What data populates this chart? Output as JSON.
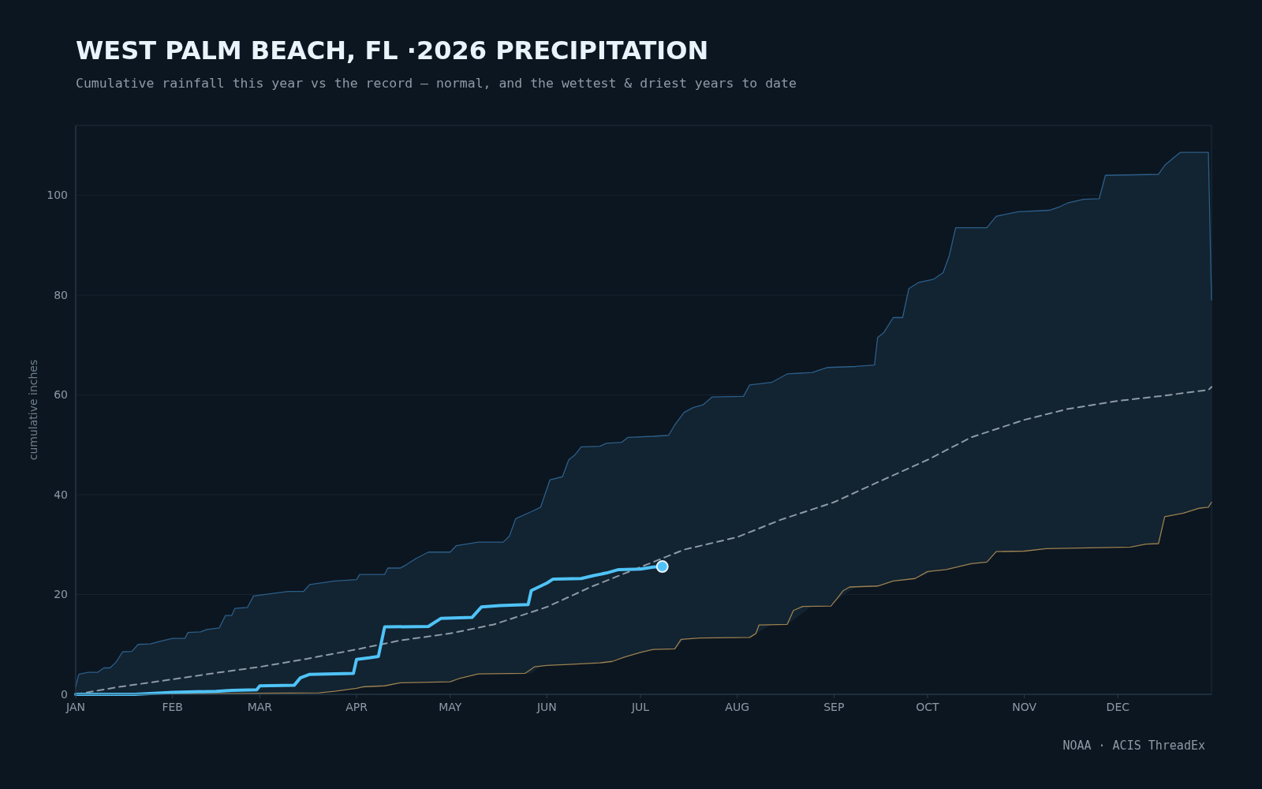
{
  "chart_data": {
    "type": "line",
    "title": "WEST PALM BEACH, FL ·2026 PRECIPITATION",
    "subtitle": "Cumulative rainfall this year vs the record — normal, and the wettest & driest years to date",
    "ylabel": "cumulative inches",
    "annotations": [
      "NOAA · ACIS ThreadEx"
    ],
    "xlim": [
      "--01-01",
      "--12-31"
    ],
    "xticks": [
      {
        "value": "--01-01",
        "label": "JAN"
      },
      {
        "value": "--02-01",
        "label": "FEB"
      },
      {
        "value": "--03-01",
        "label": "MAR"
      },
      {
        "value": "--04-01",
        "label": "APR"
      },
      {
        "value": "--05-01",
        "label": "MAY"
      },
      {
        "value": "--06-01",
        "label": "JUN"
      },
      {
        "value": "--07-01",
        "label": "JUL"
      },
      {
        "value": "--08-01",
        "label": "AUG"
      },
      {
        "value": "--09-01",
        "label": "SEP"
      },
      {
        "value": "--10-01",
        "label": "OCT"
      },
      {
        "value": "--11-01",
        "label": "NOV"
      },
      {
        "value": "--12-01",
        "label": "DEC"
      }
    ],
    "ylim": [
      0,
      114
    ],
    "yticks": [
      0,
      20,
      40,
      60,
      80,
      100
    ],
    "grid": "y",
    "series": [
      {
        "type": "line",
        "color": "#2c5f8a",
        "x": [
          "--01-01",
          "--01-02",
          "--01-05",
          "--01-08",
          "--01-10",
          "--01-12",
          "--01-14",
          "--01-16",
          "--01-19",
          "--01-21",
          "--01-25",
          "--01-28",
          "--02-01",
          "--02-05",
          "--02-06",
          "--02-10",
          "--02-12",
          "--02-16",
          "--02-18",
          "--02-20",
          "--02-21",
          "--02-25",
          "--02-27",
          "--03-10",
          "--03-15",
          "--03-17",
          "--03-25",
          "--04-01",
          "--04-02",
          "--04-10",
          "--04-11",
          "--04-15",
          "--04-17",
          "--04-20",
          "--04-24",
          "--05-01",
          "--05-03",
          "--05-10",
          "--05-18",
          "--05-20",
          "--05-22",
          "--05-27",
          "--05-30",
          "--06-02",
          "--06-06",
          "--06-08",
          "--06-10",
          "--06-12",
          "--06-18",
          "--06-20",
          "--06-25",
          "--06-27",
          "--07-05",
          "--07-10",
          "--07-12",
          "--07-15",
          "--07-18",
          "--07-21",
          "--07-24",
          "--08-03",
          "--08-05",
          "--08-12",
          "--08-17",
          "--08-25",
          "--08-30",
          "--09-08",
          "--09-14",
          "--09-15",
          "--09-17",
          "--09-20",
          "--09-23",
          "--09-25",
          "--09-28",
          "--10-03",
          "--10-06",
          "--10-08",
          "--10-10",
          "--10-20",
          "--10-23",
          "--10-30",
          "--11-09",
          "--11-12",
          "--11-15",
          "--11-20",
          "--11-25",
          "--11-27",
          "--12-14",
          "--12-16",
          "--12-19",
          "--12-21",
          "--12-30",
          "--12-31"
        ],
        "values": [
          1.5,
          4,
          4.4,
          4.4,
          5.3,
          5.3,
          6.5,
          8.5,
          8.6,
          10,
          10.1,
          10.6,
          11.2,
          11.2,
          12.4,
          12.5,
          13,
          13.3,
          15.8,
          15.8,
          17.2,
          17.4,
          19.7,
          20.6,
          20.6,
          22,
          22.7,
          23,
          24,
          24,
          25.3,
          25.3,
          26,
          27.2,
          28.5,
          28.5,
          29.8,
          30.5,
          30.5,
          31.7,
          35.2,
          36.6,
          37.5,
          43,
          43.6,
          47,
          48,
          49.6,
          49.7,
          50.3,
          50.5,
          51.5,
          51.7,
          51.9,
          54,
          56.5,
          57.5,
          58,
          59.6,
          59.7,
          62,
          62.5,
          64.2,
          64.5,
          65.5,
          65.7,
          66,
          71.5,
          72.5,
          75.5,
          75.5,
          81.3,
          82.5,
          83.2,
          84.5,
          88,
          93.5,
          93.5,
          95.8,
          96.7,
          97,
          97.6,
          98.5,
          99.2,
          99.3,
          104,
          104.2,
          106,
          107.6,
          108.6,
          108.6,
          79
        ],
        "lower": [
          0,
          0,
          0,
          0.1,
          0.1,
          0.1,
          0.1,
          0.1,
          0.1,
          0.1,
          0.1,
          0.1,
          0.2,
          0.2,
          0.2,
          0.2,
          0.2,
          0.2,
          0.2,
          0.2,
          0.2,
          0.2,
          0.3,
          0.3,
          0.3,
          0.3,
          0.6,
          1.2,
          1.3,
          1.7,
          1.8,
          2.3,
          2.3,
          2.4,
          2.4,
          2.5,
          3.0,
          4.1,
          4.1,
          4.1,
          4.2,
          4.2,
          5.6,
          5.8,
          5.9,
          6.0,
          6.1,
          6.1,
          6.3,
          6.4,
          7.3,
          7.6,
          9.0,
          9.1,
          9.1,
          11.0,
          11.2,
          11.3,
          11.3,
          11.4,
          11.4,
          14.0,
          14.0,
          17.7,
          17.7,
          21.6,
          21.7,
          21.7,
          22.1,
          22.7,
          22.9,
          23.0,
          23.4,
          24.7,
          24.9,
          25.2,
          25.5,
          26.5,
          28.6,
          28.7,
          29.2,
          29.2,
          29.3,
          29.3,
          29.4,
          29.4,
          30.2,
          35.6,
          36.0,
          36.2,
          37.5,
          38.5
        ],
        "upper": [
          1.5,
          4,
          4.4,
          4.4,
          5.3,
          5.3,
          6.5,
          8.5,
          8.6,
          10,
          10.1,
          10.6,
          11.2,
          11.2,
          12.4,
          12.5,
          13,
          13.3,
          15.8,
          15.8,
          17.2,
          17.4,
          19.7,
          20.6,
          20.6,
          22,
          22.7,
          23,
          24,
          24,
          25.3,
          25.3,
          26,
          27.2,
          28.5,
          28.5,
          29.8,
          30.5,
          30.5,
          31.7,
          35.2,
          36.6,
          37.5,
          43,
          43.6,
          47,
          48,
          49.6,
          49.7,
          50.3,
          50.5,
          51.5,
          51.7,
          51.9,
          54,
          56.5,
          57.5,
          58,
          59.6,
          59.7,
          62,
          62.5,
          64.2,
          64.5,
          65.5,
          65.7,
          66,
          71.5,
          72.5,
          75.5,
          75.5,
          81.3,
          82.5,
          83.2,
          84.5,
          88,
          93.5,
          93.5,
          95.8,
          96.7,
          97,
          97.6,
          98.5,
          99.2,
          99.3,
          104,
          104.2,
          106,
          107.6,
          108.6,
          108.6,
          79
        ]
      },
      {
        "type": "line",
        "color": "#9c8150",
        "x": [
          "--01-01",
          "--03-20",
          "--03-25",
          "--04-01",
          "--04-03",
          "--04-10",
          "--04-15",
          "--05-01",
          "--05-04",
          "--05-10",
          "--05-25",
          "--05-28",
          "--06-01",
          "--06-08",
          "--06-18",
          "--06-22",
          "--06-26",
          "--07-01",
          "--07-05",
          "--07-12",
          "--07-14",
          "--07-20",
          "--08-05",
          "--08-07",
          "--08-08",
          "--08-17",
          "--08-19",
          "--08-22",
          "--08-31",
          "--09-02",
          "--09-04",
          "--09-06",
          "--09-15",
          "--09-20",
          "--09-27",
          "--10-01",
          "--10-07",
          "--10-15",
          "--10-20",
          "--10-23",
          "--11-01",
          "--11-08",
          "--12-05",
          "--12-10",
          "--12-14",
          "--12-16",
          "--12-22",
          "--12-27",
          "--12-30",
          "--12-31"
        ],
        "values": [
          0,
          0.3,
          0.6,
          1.2,
          1.5,
          1.7,
          2.3,
          2.5,
          3.2,
          4.1,
          4.2,
          5.5,
          5.8,
          6,
          6.3,
          6.6,
          7.5,
          8.4,
          9,
          9.1,
          11,
          11.3,
          11.4,
          12.2,
          13.9,
          14,
          16.8,
          17.6,
          17.7,
          19.2,
          20.8,
          21.5,
          21.7,
          22.7,
          23.2,
          24.6,
          25,
          26.2,
          26.5,
          28.6,
          28.7,
          29.2,
          29.5,
          30.1,
          30.2,
          35.6,
          36.3,
          37.3,
          37.5,
          38.5
        ]
      },
      {
        "type": "line",
        "color": "#8d9aa6",
        "line_style": "dashed",
        "x": [
          "--01-01",
          "--01-15",
          "--02-01",
          "--02-15",
          "--03-01",
          "--03-15",
          "--04-01",
          "--04-15",
          "--05-01",
          "--05-15",
          "--06-01",
          "--06-15",
          "--07-01",
          "--07-15",
          "--08-01",
          "--08-15",
          "--09-01",
          "--09-15",
          "--10-01",
          "--10-15",
          "--11-01",
          "--11-15",
          "--12-01",
          "--12-15",
          "--12-30",
          "--12-31"
        ],
        "values": [
          0,
          1.5,
          3,
          4.3,
          5.5,
          7,
          9,
          10.8,
          12.2,
          14,
          17.5,
          21.5,
          25.5,
          29,
          31.5,
          35,
          38.5,
          42.5,
          47,
          51.5,
          55,
          57.2,
          58.8,
          59.8,
          61,
          61.6
        ]
      },
      {
        "type": "line",
        "color": "#4fc3f7",
        "x": [
          "--01-01",
          "--01-20",
          "--02-01",
          "--02-15",
          "--02-20",
          "--02-28",
          "--03-01",
          "--03-12",
          "--03-14",
          "--03-17",
          "--03-31",
          "--04-01",
          "--04-05",
          "--04-08",
          "--04-10",
          "--04-24",
          "--04-28",
          "--05-08",
          "--05-11",
          "--05-17",
          "--05-26",
          "--05-27",
          "--06-01",
          "--06-03",
          "--06-12",
          "--06-16",
          "--06-20",
          "--06-24",
          "--07-01",
          "--07-05",
          "--07-08"
        ],
        "values": [
          0,
          0,
          0.4,
          0.6,
          0.8,
          0.9,
          1.7,
          1.8,
          3.3,
          4,
          4.2,
          7,
          7.3,
          7.6,
          13.5,
          13.6,
          15.2,
          15.4,
          17.5,
          17.8,
          18,
          20.8,
          22.3,
          23.1,
          23.2,
          23.8,
          24.3,
          25,
          25.1,
          25.5,
          25.6
        ]
      },
      {
        "type": "scatter",
        "color": "#4fc3f7",
        "marker": "circle",
        "x": [
          "--07-08"
        ],
        "values": [
          25.6
        ]
      }
    ]
  }
}
